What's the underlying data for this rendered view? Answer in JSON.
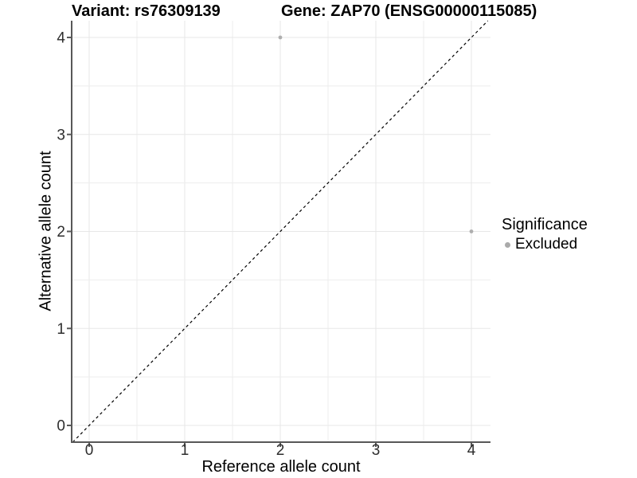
{
  "titles": {
    "variant": "Variant: rs76309139",
    "gene": "Gene: ZAP70 (ENSG00000115085)"
  },
  "axes": {
    "x": {
      "label": "Reference allele count",
      "ticks": [
        0,
        1,
        2,
        3,
        4
      ]
    },
    "y": {
      "label": "Alternative allele count",
      "ticks": [
        0,
        1,
        2,
        3,
        4
      ]
    }
  },
  "legend": {
    "title": "Significance",
    "items": [
      {
        "label": "Excluded",
        "color": "#aaaaaa"
      }
    ]
  },
  "colors": {
    "background": "#ffffff",
    "grid_major": "#e7e7e7",
    "grid_minor": "#ededed",
    "axis_line": "#585858",
    "tick_text": "#2e2e2e",
    "identity_line": "#000000",
    "point": "#aeaeae"
  },
  "chart_data": {
    "type": "scatter",
    "title": "Variant: rs76309139   Gene: ZAP70 (ENSG00000115085)",
    "xlabel": "Reference allele count",
    "ylabel": "Alternative allele count",
    "xlim": [
      -0.2,
      4.2
    ],
    "ylim": [
      -0.2,
      4.2
    ],
    "x_ticks": [
      0,
      1,
      2,
      3,
      4
    ],
    "y_ticks": [
      0,
      1,
      2,
      3,
      4
    ],
    "grid": "major at integers, minor at 0.5 steps",
    "legend_position": "right",
    "series": [
      {
        "name": "Excluded",
        "color": "#aaaaaa",
        "points": [
          [
            2,
            4
          ],
          [
            4,
            2
          ]
        ]
      }
    ],
    "reference_line": {
      "type": "identity y=x",
      "style": "dashed",
      "color": "#000000"
    }
  }
}
